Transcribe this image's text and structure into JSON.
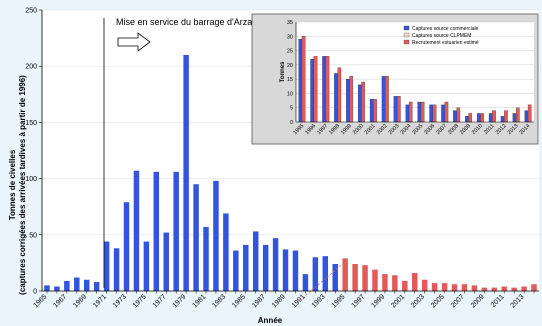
{
  "chart_data": [
    {
      "type": "bar",
      "xlabel": "Année",
      "ylabel_lines": [
        "Tonnes de civelles",
        "(captures corrigées des arrivées tardives à partir de 1996)"
      ],
      "ylim": [
        0,
        250
      ],
      "yticks": [
        0,
        50,
        100,
        150,
        200,
        250
      ],
      "x": [
        1965,
        1966,
        1967,
        1968,
        1969,
        1970,
        1971,
        1972,
        1973,
        1974,
        1975,
        1976,
        1977,
        1978,
        1979,
        1980,
        1981,
        1982,
        1983,
        1984,
        1985,
        1986,
        1987,
        1988,
        1989,
        1990,
        1991,
        1992,
        1993,
        1994,
        1995,
        1996,
        1997,
        1998,
        1999,
        2000,
        2001,
        2002,
        2003,
        2004,
        2005,
        2006,
        2007,
        2008,
        2009,
        2010,
        2011,
        2012,
        2013,
        2014
      ],
      "xtick_labels": [
        "1965",
        "1967",
        "1969",
        "1971",
        "1973",
        "1975",
        "1977",
        "1979",
        "1981",
        "1983",
        "1985",
        "1987",
        "1989",
        "1991",
        "1993",
        "1995",
        "1997",
        "1999",
        "2001",
        "2003",
        "2005",
        "2007",
        "2009",
        "2011",
        "2013"
      ],
      "series": [
        {
          "color": "#3355dd",
          "values": [
            5,
            4,
            9,
            12,
            10,
            8,
            44,
            38,
            79,
            107,
            44,
            106,
            52,
            106,
            210,
            95,
            57,
            98,
            69,
            36,
            41,
            53,
            41,
            47,
            37,
            36,
            15,
            30,
            31,
            24,
            null,
            null,
            null,
            null,
            null,
            null,
            null,
            null,
            null,
            null,
            null,
            null,
            null,
            null,
            null,
            null,
            null,
            null,
            null,
            null
          ]
        },
        {
          "color": "#e25a5a",
          "values": [
            null,
            null,
            null,
            null,
            null,
            null,
            null,
            null,
            null,
            null,
            null,
            null,
            null,
            null,
            null,
            null,
            null,
            null,
            null,
            null,
            null,
            null,
            null,
            null,
            null,
            null,
            null,
            null,
            null,
            null,
            29,
            24,
            23,
            19,
            15,
            14,
            9,
            16,
            10,
            7,
            7,
            6,
            6,
            5,
            3,
            3,
            4,
            3,
            4,
            6
          ]
        }
      ],
      "annotation": "Mise en service du barrage d'Arzal"
    },
    {
      "type": "bar",
      "ylabel": "Tonnes",
      "ylim": [
        0,
        35
      ],
      "yticks": [
        0,
        5,
        10,
        15,
        20,
        25,
        30,
        35
      ],
      "categories": [
        "1995",
        "1996",
        "1997",
        "1998",
        "1999",
        "2000",
        "2001",
        "2002",
        "2003",
        "2004",
        "2005",
        "2006",
        "2007",
        "2008",
        "2009",
        "2010",
        "2011",
        "2012",
        "2013",
        "2014"
      ],
      "series": [
        {
          "name": "Captures source commerciale",
          "color": "#3355dd",
          "values": [
            29,
            22,
            23,
            17,
            15,
            13,
            8,
            16,
            9,
            6,
            7,
            6,
            6,
            4,
            2,
            3,
            3,
            2,
            3,
            4
          ]
        },
        {
          "name": "Captures source CLPMEM",
          "color": "#f3d9c8",
          "values": [
            null,
            null,
            null,
            null,
            null,
            null,
            null,
            null,
            null,
            null,
            null,
            null,
            null,
            null,
            null,
            null,
            null,
            null,
            null,
            null
          ]
        },
        {
          "name": "Recrutement estuarien estimé",
          "color": "#e25a5a",
          "values": [
            30,
            23,
            23,
            19,
            16,
            14,
            8,
            16,
            9,
            7,
            7,
            6,
            7,
            5,
            3,
            3,
            4,
            4,
            5,
            6
          ]
        }
      ],
      "legend": "top-right"
    }
  ]
}
